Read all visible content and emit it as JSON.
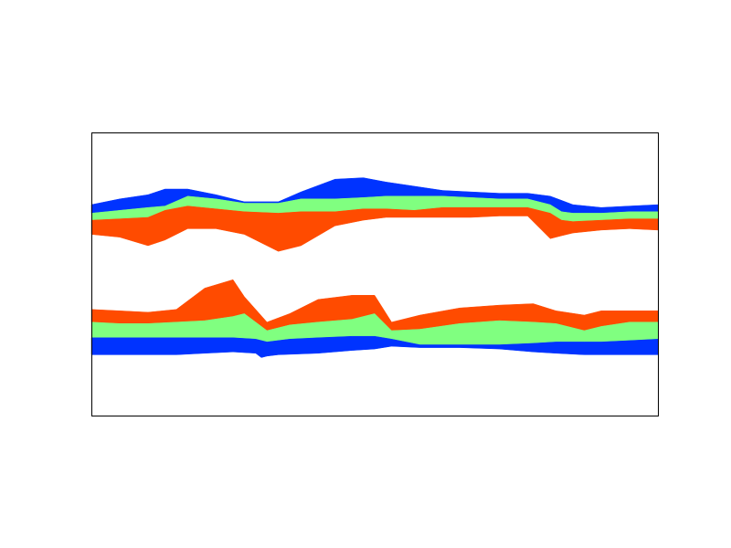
{
  "chart_data": {
    "type": "area",
    "title": "",
    "xlabel": "",
    "ylabel": "",
    "xlim": [
      0,
      1
    ],
    "ylim": [
      0,
      1
    ],
    "grid": false,
    "legend": "none",
    "colors": {
      "outer": "#0033ff",
      "middle": "#80ff80",
      "inner": "#ff4b00"
    },
    "series": [
      {
        "band": "upper-outer",
        "color_key": "outer",
        "top": [
          [
            0,
            0.745
          ],
          [
            0.05,
            0.765
          ],
          [
            0.1,
            0.78
          ],
          [
            0.13,
            0.8
          ],
          [
            0.17,
            0.8
          ],
          [
            0.22,
            0.78
          ],
          [
            0.27,
            0.755
          ],
          [
            0.33,
            0.755
          ],
          [
            0.37,
            0.79
          ],
          [
            0.43,
            0.835
          ],
          [
            0.48,
            0.84
          ],
          [
            0.52,
            0.825
          ],
          [
            0.57,
            0.81
          ],
          [
            0.62,
            0.795
          ],
          [
            0.67,
            0.79
          ],
          [
            0.72,
            0.785
          ],
          [
            0.77,
            0.785
          ],
          [
            0.81,
            0.775
          ],
          [
            0.83,
            0.76
          ],
          [
            0.85,
            0.745
          ],
          [
            0.9,
            0.735
          ],
          [
            0.95,
            0.74
          ],
          [
            1,
            0.745
          ]
        ],
        "bottom": [
          [
            0,
            0.715
          ],
          [
            0.05,
            0.725
          ],
          [
            0.1,
            0.735
          ],
          [
            0.13,
            0.74
          ],
          [
            0.17,
            0.775
          ],
          [
            0.22,
            0.765
          ],
          [
            0.27,
            0.75
          ],
          [
            0.33,
            0.75
          ],
          [
            0.37,
            0.765
          ],
          [
            0.43,
            0.765
          ],
          [
            0.48,
            0.77
          ],
          [
            0.52,
            0.775
          ],
          [
            0.57,
            0.775
          ],
          [
            0.62,
            0.775
          ],
          [
            0.67,
            0.77
          ],
          [
            0.72,
            0.765
          ],
          [
            0.77,
            0.765
          ],
          [
            0.81,
            0.745
          ],
          [
            0.83,
            0.72
          ],
          [
            0.85,
            0.715
          ],
          [
            0.9,
            0.715
          ],
          [
            0.95,
            0.72
          ],
          [
            1,
            0.72
          ]
        ]
      },
      {
        "band": "upper-middle",
        "color_key": "middle",
        "top": [
          [
            0,
            0.715
          ],
          [
            0.05,
            0.725
          ],
          [
            0.1,
            0.735
          ],
          [
            0.13,
            0.74
          ],
          [
            0.17,
            0.775
          ],
          [
            0.22,
            0.765
          ],
          [
            0.27,
            0.75
          ],
          [
            0.33,
            0.75
          ],
          [
            0.37,
            0.765
          ],
          [
            0.43,
            0.765
          ],
          [
            0.48,
            0.77
          ],
          [
            0.52,
            0.775
          ],
          [
            0.57,
            0.775
          ],
          [
            0.62,
            0.775
          ],
          [
            0.67,
            0.77
          ],
          [
            0.72,
            0.765
          ],
          [
            0.77,
            0.765
          ],
          [
            0.81,
            0.745
          ],
          [
            0.83,
            0.72
          ],
          [
            0.85,
            0.715
          ],
          [
            0.9,
            0.715
          ],
          [
            0.95,
            0.72
          ],
          [
            1,
            0.72
          ]
        ],
        "bottom": [
          [
            0,
            0.69
          ],
          [
            0.05,
            0.695
          ],
          [
            0.1,
            0.7
          ],
          [
            0.13,
            0.725
          ],
          [
            0.17,
            0.74
          ],
          [
            0.22,
            0.73
          ],
          [
            0.27,
            0.72
          ],
          [
            0.33,
            0.715
          ],
          [
            0.37,
            0.72
          ],
          [
            0.43,
            0.72
          ],
          [
            0.48,
            0.73
          ],
          [
            0.52,
            0.73
          ],
          [
            0.57,
            0.725
          ],
          [
            0.62,
            0.735
          ],
          [
            0.67,
            0.735
          ],
          [
            0.72,
            0.735
          ],
          [
            0.77,
            0.735
          ],
          [
            0.81,
            0.715
          ],
          [
            0.83,
            0.69
          ],
          [
            0.85,
            0.685
          ],
          [
            0.9,
            0.69
          ],
          [
            0.95,
            0.695
          ],
          [
            1,
            0.695
          ]
        ]
      },
      {
        "band": "upper-inner",
        "color_key": "inner",
        "top": [
          [
            0,
            0.69
          ],
          [
            0.05,
            0.695
          ],
          [
            0.1,
            0.7
          ],
          [
            0.13,
            0.725
          ],
          [
            0.17,
            0.74
          ],
          [
            0.22,
            0.73
          ],
          [
            0.27,
            0.72
          ],
          [
            0.33,
            0.715
          ],
          [
            0.37,
            0.72
          ],
          [
            0.43,
            0.72
          ],
          [
            0.48,
            0.73
          ],
          [
            0.52,
            0.73
          ],
          [
            0.57,
            0.725
          ],
          [
            0.62,
            0.735
          ],
          [
            0.67,
            0.735
          ],
          [
            0.72,
            0.735
          ],
          [
            0.77,
            0.735
          ],
          [
            0.81,
            0.715
          ],
          [
            0.83,
            0.69
          ],
          [
            0.85,
            0.685
          ],
          [
            0.9,
            0.69
          ],
          [
            0.95,
            0.695
          ],
          [
            1,
            0.695
          ]
        ],
        "bottom": [
          [
            0,
            0.64
          ],
          [
            0.05,
            0.63
          ],
          [
            0.1,
            0.6
          ],
          [
            0.13,
            0.62
          ],
          [
            0.17,
            0.66
          ],
          [
            0.22,
            0.66
          ],
          [
            0.27,
            0.64
          ],
          [
            0.33,
            0.58
          ],
          [
            0.37,
            0.6
          ],
          [
            0.43,
            0.67
          ],
          [
            0.48,
            0.69
          ],
          [
            0.52,
            0.7
          ],
          [
            0.57,
            0.7
          ],
          [
            0.62,
            0.7
          ],
          [
            0.67,
            0.7
          ],
          [
            0.72,
            0.705
          ],
          [
            0.77,
            0.705
          ],
          [
            0.81,
            0.625
          ],
          [
            0.83,
            0.635
          ],
          [
            0.85,
            0.645
          ],
          [
            0.9,
            0.655
          ],
          [
            0.95,
            0.66
          ],
          [
            1,
            0.655
          ]
        ]
      },
      {
        "band": "lower-inner",
        "color_key": "inner",
        "top": [
          [
            0,
            0.375
          ],
          [
            0.05,
            0.37
          ],
          [
            0.1,
            0.365
          ],
          [
            0.15,
            0.375
          ],
          [
            0.2,
            0.45
          ],
          [
            0.25,
            0.48
          ],
          [
            0.27,
            0.42
          ],
          [
            0.31,
            0.33
          ],
          [
            0.35,
            0.36
          ],
          [
            0.4,
            0.41
          ],
          [
            0.46,
            0.425
          ],
          [
            0.5,
            0.425
          ],
          [
            0.53,
            0.33
          ],
          [
            0.58,
            0.355
          ],
          [
            0.65,
            0.38
          ],
          [
            0.72,
            0.39
          ],
          [
            0.78,
            0.395
          ],
          [
            0.82,
            0.37
          ],
          [
            0.87,
            0.355
          ],
          [
            0.9,
            0.37
          ],
          [
            0.95,
            0.37
          ],
          [
            1,
            0.37
          ]
        ],
        "bottom": [
          [
            0,
            0.33
          ],
          [
            0.05,
            0.325
          ],
          [
            0.1,
            0.325
          ],
          [
            0.15,
            0.33
          ],
          [
            0.2,
            0.335
          ],
          [
            0.25,
            0.35
          ],
          [
            0.27,
            0.36
          ],
          [
            0.31,
            0.3
          ],
          [
            0.35,
            0.32
          ],
          [
            0.4,
            0.33
          ],
          [
            0.46,
            0.34
          ],
          [
            0.5,
            0.36
          ],
          [
            0.53,
            0.3
          ],
          [
            0.58,
            0.305
          ],
          [
            0.65,
            0.325
          ],
          [
            0.72,
            0.335
          ],
          [
            0.78,
            0.33
          ],
          [
            0.82,
            0.325
          ],
          [
            0.87,
            0.3
          ],
          [
            0.9,
            0.315
          ],
          [
            0.95,
            0.33
          ],
          [
            1,
            0.33
          ]
        ]
      },
      {
        "band": "lower-middle",
        "color_key": "middle",
        "top": [
          [
            0,
            0.33
          ],
          [
            0.05,
            0.325
          ],
          [
            0.1,
            0.325
          ],
          [
            0.15,
            0.33
          ],
          [
            0.2,
            0.335
          ],
          [
            0.25,
            0.35
          ],
          [
            0.27,
            0.36
          ],
          [
            0.31,
            0.3
          ],
          [
            0.35,
            0.32
          ],
          [
            0.4,
            0.33
          ],
          [
            0.46,
            0.34
          ],
          [
            0.5,
            0.36
          ],
          [
            0.53,
            0.3
          ],
          [
            0.58,
            0.305
          ],
          [
            0.65,
            0.325
          ],
          [
            0.72,
            0.335
          ],
          [
            0.78,
            0.33
          ],
          [
            0.82,
            0.325
          ],
          [
            0.87,
            0.3
          ],
          [
            0.9,
            0.315
          ],
          [
            0.95,
            0.33
          ],
          [
            1,
            0.33
          ]
        ],
        "bottom": [
          [
            0,
            0.275
          ],
          [
            0.05,
            0.275
          ],
          [
            0.1,
            0.275
          ],
          [
            0.15,
            0.275
          ],
          [
            0.2,
            0.275
          ],
          [
            0.25,
            0.275
          ],
          [
            0.29,
            0.27
          ],
          [
            0.31,
            0.26
          ],
          [
            0.35,
            0.27
          ],
          [
            0.4,
            0.275
          ],
          [
            0.46,
            0.28
          ],
          [
            0.5,
            0.28
          ],
          [
            0.53,
            0.27
          ],
          [
            0.58,
            0.25
          ],
          [
            0.65,
            0.25
          ],
          [
            0.72,
            0.25
          ],
          [
            0.78,
            0.255
          ],
          [
            0.82,
            0.26
          ],
          [
            0.87,
            0.26
          ],
          [
            0.9,
            0.26
          ],
          [
            0.95,
            0.265
          ],
          [
            1,
            0.27
          ]
        ]
      },
      {
        "band": "lower-outer",
        "color_key": "outer",
        "top": [
          [
            0,
            0.275
          ],
          [
            0.05,
            0.275
          ],
          [
            0.1,
            0.275
          ],
          [
            0.15,
            0.275
          ],
          [
            0.2,
            0.275
          ],
          [
            0.25,
            0.275
          ],
          [
            0.29,
            0.27
          ],
          [
            0.31,
            0.26
          ],
          [
            0.35,
            0.27
          ],
          [
            0.4,
            0.275
          ],
          [
            0.46,
            0.28
          ],
          [
            0.5,
            0.28
          ],
          [
            0.53,
            0.27
          ],
          [
            0.58,
            0.25
          ],
          [
            0.65,
            0.25
          ],
          [
            0.72,
            0.25
          ],
          [
            0.78,
            0.255
          ],
          [
            0.82,
            0.26
          ],
          [
            0.87,
            0.26
          ],
          [
            0.9,
            0.26
          ],
          [
            0.95,
            0.265
          ],
          [
            1,
            0.27
          ]
        ],
        "bottom": [
          [
            0,
            0.215
          ],
          [
            0.05,
            0.215
          ],
          [
            0.1,
            0.215
          ],
          [
            0.15,
            0.215
          ],
          [
            0.2,
            0.22
          ],
          [
            0.25,
            0.225
          ],
          [
            0.29,
            0.22
          ],
          [
            0.3,
            0.205
          ],
          [
            0.31,
            0.21
          ],
          [
            0.33,
            0.215
          ],
          [
            0.4,
            0.22
          ],
          [
            0.46,
            0.23
          ],
          [
            0.5,
            0.235
          ],
          [
            0.53,
            0.245
          ],
          [
            0.58,
            0.24
          ],
          [
            0.65,
            0.24
          ],
          [
            0.72,
            0.235
          ],
          [
            0.78,
            0.225
          ],
          [
            0.82,
            0.22
          ],
          [
            0.87,
            0.215
          ],
          [
            0.9,
            0.215
          ],
          [
            0.95,
            0.215
          ],
          [
            1,
            0.215
          ]
        ]
      }
    ]
  }
}
